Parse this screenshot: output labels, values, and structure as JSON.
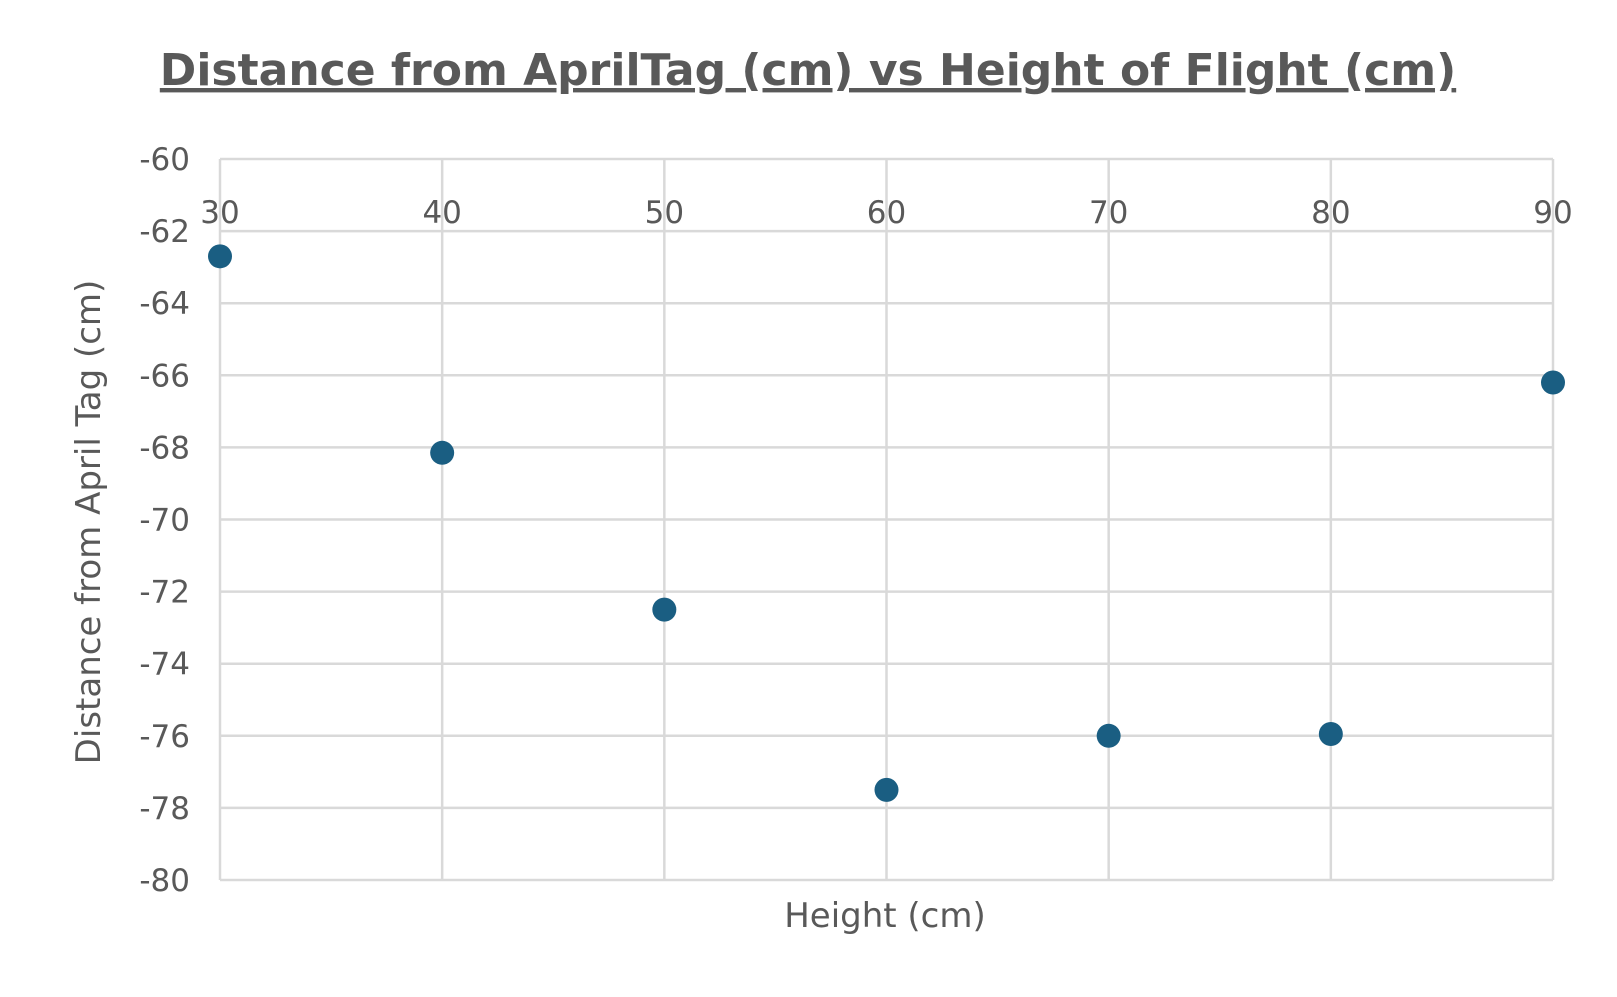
{
  "chart_data": {
    "type": "scatter",
    "title": "Distance from AprilTag (cm) vs Height of Flight (cm)",
    "xlabel": "Height (cm)",
    "ylabel": "Distance from April Tag (cm)",
    "xlim": [
      30,
      90
    ],
    "ylim": [
      -80,
      -60
    ],
    "x_ticks": [
      30,
      40,
      50,
      60,
      70,
      80,
      90
    ],
    "y_ticks": [
      -60,
      -62,
      -64,
      -66,
      -68,
      -70,
      -72,
      -74,
      -76,
      -78,
      -80
    ],
    "x_tick_labels": [
      "30",
      "40",
      "50",
      "60",
      "70",
      "80",
      "90"
    ],
    "y_tick_labels": [
      "-60",
      "-62",
      "-64",
      "-66",
      "-68",
      "-70",
      "-72",
      "-74",
      "-76",
      "-78",
      "-80"
    ],
    "x_axis_position": "top",
    "grid": true,
    "series": [
      {
        "x": [
          30,
          40,
          50,
          60,
          70,
          80,
          90
        ],
        "y": [
          -62.7,
          -68.15,
          -72.5,
          -77.5,
          -76.0,
          -75.95,
          -66.2
        ]
      }
    ],
    "colors": {
      "marker": "#1a5e82",
      "grid": "#d9d9d9",
      "text": "#595959"
    }
  }
}
